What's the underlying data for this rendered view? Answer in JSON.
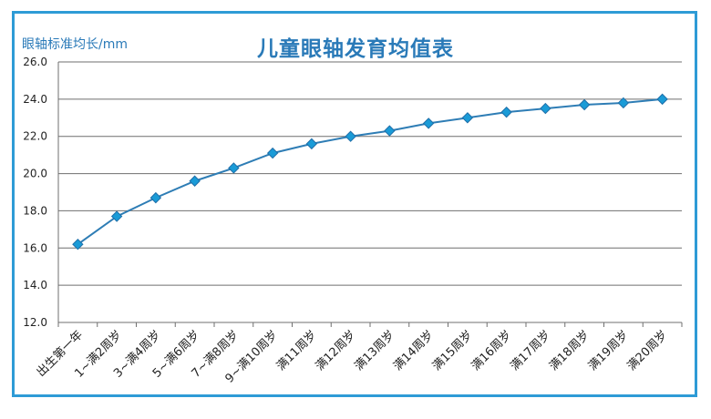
{
  "chart_data": {
    "type": "line",
    "title": "儿童眼轴发育均值表",
    "ylabel": "眼轴标准均长/mm",
    "xlabel": "",
    "ylim": [
      12.0,
      26.0
    ],
    "yticks": [
      "12.0",
      "14.0",
      "16.0",
      "18.0",
      "20.0",
      "22.0",
      "24.0",
      "26.0"
    ],
    "grid": true,
    "categories": [
      "出生第一年",
      "1~满2周岁",
      "3~满4周岁",
      "5~满6周岁",
      "7~满8周岁",
      "9~满10周岁",
      "满11周岁",
      "满12周岁",
      "满13周岁",
      "满14周岁",
      "满15周岁",
      "满16周岁",
      "满17周岁",
      "满18周岁",
      "满19周岁",
      "满20周岁"
    ],
    "series": [
      {
        "values": [
          16.2,
          17.7,
          18.7,
          19.6,
          20.3,
          21.1,
          21.6,
          22.0,
          22.3,
          22.7,
          23.0,
          23.3,
          23.5,
          23.7,
          23.8,
          24.0
        ]
      }
    ],
    "colors": {
      "line": "#2e7db5",
      "marker": "#1a9bd7",
      "frame": "#2e9bd6",
      "grid": "#6f6f6f"
    }
  }
}
